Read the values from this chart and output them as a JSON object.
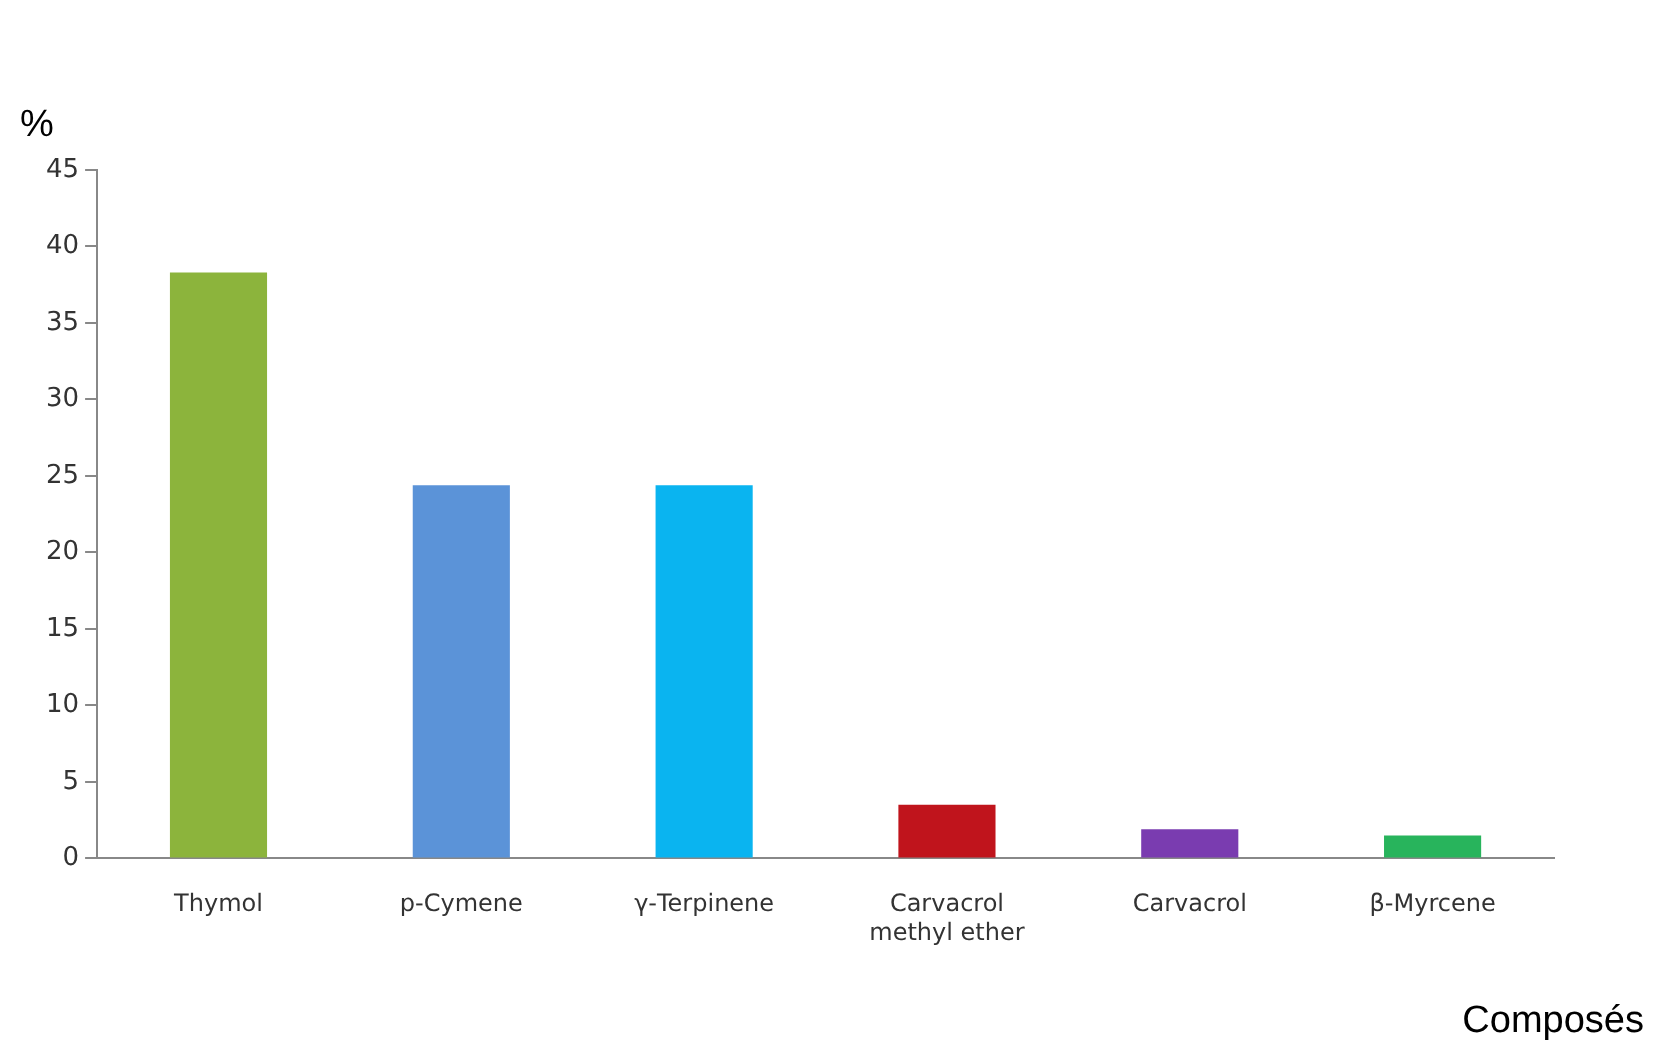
{
  "chart_data": {
    "type": "bar",
    "xlabel": "Composés",
    "ylabel": "%",
    "categories": [
      "Thymol",
      "p-Cymene",
      "γ-Terpinene",
      "Carvacrol methyl ether",
      "Carvacrol",
      "β-Myrcene"
    ],
    "values": [
      38.3,
      24.4,
      24.4,
      3.5,
      1.9,
      1.5
    ],
    "colors": [
      "#8cb43c",
      "#5b93d8",
      "#0ab4f0",
      "#c0141c",
      "#7a3cb0",
      "#28b45c"
    ],
    "ylim": [
      0,
      45
    ],
    "yticks": [
      0,
      5,
      10,
      15,
      20,
      25,
      30,
      35,
      40,
      45
    ],
    "grid": false,
    "legend": false
  }
}
